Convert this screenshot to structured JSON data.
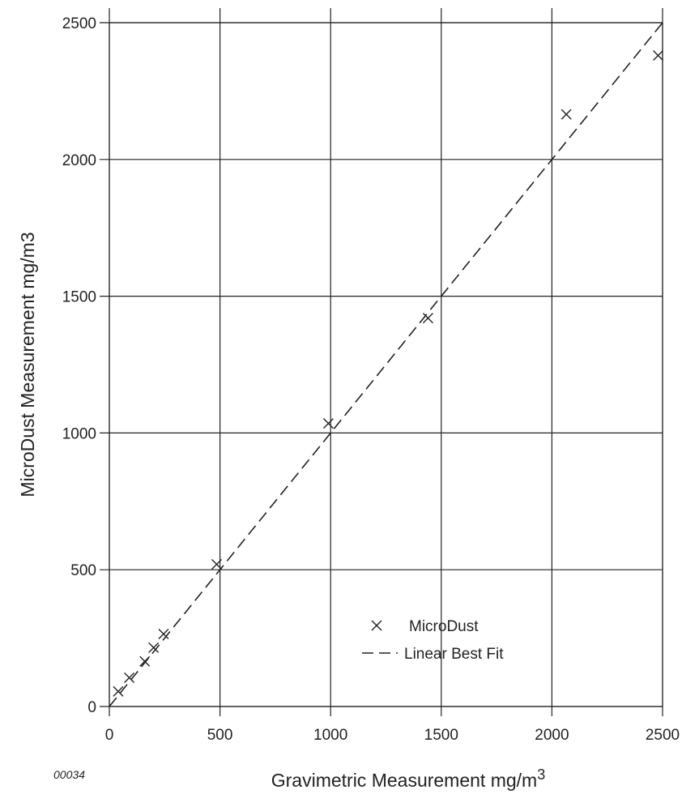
{
  "chart_data": {
    "type": "scatter",
    "xlabel": "Gravimetric  Measurement  mg/m",
    "xlabel_sup": "3",
    "ylabel": "MicroDust  Measurement  mg/m3",
    "xlim": [
      0,
      2500
    ],
    "ylim": [
      0,
      2500
    ],
    "x_ticks": [
      0,
      500,
      1000,
      1500,
      2000,
      2500
    ],
    "y_ticks": [
      0,
      500,
      1000,
      1500,
      2000,
      2500
    ],
    "x_tick_labels": [
      "0",
      "500",
      "1000",
      "1500",
      "2000",
      "2500"
    ],
    "y_tick_labels": [
      "0",
      "500",
      "1000",
      "1500",
      "2000",
      "2500"
    ],
    "grid": true,
    "legend_position": "bottom-right",
    "series": [
      {
        "name": "MicroDust",
        "marker": "X",
        "color": "#222222",
        "points": [
          {
            "x": 40,
            "y": 55
          },
          {
            "x": 90,
            "y": 105
          },
          {
            "x": 160,
            "y": 165
          },
          {
            "x": 200,
            "y": 215
          },
          {
            "x": 245,
            "y": 265
          },
          {
            "x": 485,
            "y": 520
          },
          {
            "x": 990,
            "y": 1035
          },
          {
            "x": 1440,
            "y": 1420
          },
          {
            "x": 2065,
            "y": 2165
          },
          {
            "x": 2480,
            "y": 2380
          }
        ]
      },
      {
        "name": "Linear Best Fit",
        "line_style": "dashed",
        "color": "#222222",
        "points": [
          {
            "x": 0,
            "y": 0
          },
          {
            "x": 2500,
            "y": 2500
          }
        ]
      }
    ],
    "annotation": "00034"
  }
}
